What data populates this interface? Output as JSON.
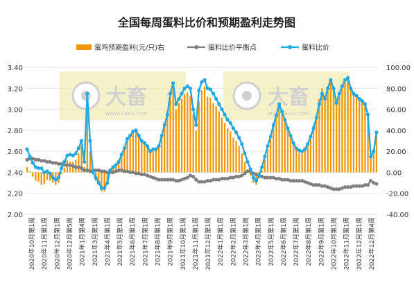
{
  "chart_data": {
    "type": "bar+line",
    "title": "全国每周蛋料比价和预期盈利走势图",
    "legend": [
      {
        "name": "蛋鸡预期盈利(元/只)右",
        "type": "bar",
        "color": "#f0960c"
      },
      {
        "name": "蛋料比价平衡点",
        "type": "line",
        "color": "#7f7f7f"
      },
      {
        "name": "蛋料比价",
        "type": "line",
        "color": "#22a7e0"
      }
    ],
    "legend_position": "top",
    "watermark_text": "大畜",
    "watermark_sub": "www.daxu.com",
    "y_left": {
      "min": 2.0,
      "max": 3.4,
      "ticks": [
        "2.00",
        "2.20",
        "2.40",
        "2.60",
        "2.80",
        "3.00",
        "3.20",
        "3.40"
      ]
    },
    "y_right": {
      "min": -40,
      "max": 100,
      "ticks": [
        "-40.00",
        "-20.00",
        "0.00",
        "20.00",
        "40.00",
        "60.00",
        "80.00",
        "100.00"
      ]
    },
    "grid": true,
    "x_tick_labels": [
      "2020年10月第1周",
      "2020年11月第1周",
      "2020年12月第1周",
      "2020年12月第5周",
      "2021年1月第4周",
      "2021年3月第1周",
      "2021年4月第1周",
      "2021年5月第1周",
      "2021年6月第1周",
      "2021年7月第1周",
      "2021年8月第1周",
      "2021年9月第1周",
      "2021年10月第1周",
      "2021年11月第1周",
      "2021年12月第1周",
      "2022年1月第1周",
      "2022年2月第1周",
      "2022年3月第1周",
      "2022年4月第1周",
      "2022年5月第1周",
      "2022年6月第1周",
      "2022年7月第1周",
      "2022年8月第1周",
      "2022年9月第1周",
      "2022年10月第1周",
      "2022年11月第1周",
      "2022年12月第1周",
      "2022年12月第4周"
    ],
    "ratio": [
      2.62,
      2.55,
      2.49,
      2.45,
      2.44,
      2.44,
      2.4,
      2.41,
      2.39,
      2.35,
      2.33,
      2.35,
      2.44,
      2.5,
      2.56,
      2.57,
      2.56,
      2.58,
      2.63,
      2.7,
      2.5,
      3.15,
      2.7,
      2.4,
      2.35,
      2.3,
      2.25,
      2.25,
      2.3,
      2.42,
      2.45,
      2.47,
      2.5,
      2.57,
      2.63,
      2.72,
      2.75,
      2.79,
      2.8,
      2.75,
      2.7,
      2.68,
      2.65,
      2.6,
      2.62,
      2.62,
      2.65,
      2.75,
      2.85,
      2.95,
      3.15,
      3.25,
      3.05,
      3.1,
      3.15,
      3.2,
      3.22,
      3.2,
      3.0,
      2.85,
      3.18,
      3.26,
      3.28,
      3.2,
      3.19,
      3.15,
      3.1,
      3.05,
      3.0,
      2.95,
      2.9,
      2.87,
      2.82,
      2.78,
      2.73,
      2.67,
      2.58,
      2.5,
      2.43,
      2.35,
      2.32,
      2.37,
      2.45,
      2.55,
      2.65,
      2.74,
      2.85,
      2.94,
      3.05,
      2.98,
      2.9,
      2.82,
      2.75,
      2.68,
      2.63,
      2.61,
      2.6,
      2.62,
      2.67,
      2.74,
      2.82,
      2.92,
      3.05,
      3.15,
      3.1,
      3.2,
      3.28,
      3.2,
      3.06,
      3.15,
      3.22,
      3.28,
      3.3,
      3.2,
      3.15,
      3.13,
      3.1,
      3.08,
      3.05,
      2.95,
      2.55,
      2.6,
      2.78
    ],
    "balance": [
      2.52,
      2.53,
      2.53,
      2.52,
      2.52,
      2.51,
      2.51,
      2.5,
      2.5,
      2.49,
      2.49,
      2.48,
      2.48,
      2.47,
      2.47,
      2.47,
      2.46,
      2.45,
      2.45,
      2.44,
      2.42,
      2.42,
      2.41,
      2.42,
      2.42,
      2.42,
      2.41,
      2.41,
      2.4,
      2.4,
      2.4,
      2.41,
      2.42,
      2.42,
      2.41,
      2.41,
      2.4,
      2.4,
      2.39,
      2.39,
      2.38,
      2.38,
      2.37,
      2.36,
      2.35,
      2.34,
      2.33,
      2.33,
      2.33,
      2.33,
      2.33,
      2.33,
      2.32,
      2.32,
      2.33,
      2.34,
      2.35,
      2.37,
      2.36,
      2.33,
      2.31,
      2.31,
      2.31,
      2.32,
      2.32,
      2.33,
      2.33,
      2.33,
      2.34,
      2.34,
      2.34,
      2.35,
      2.35,
      2.36,
      2.36,
      2.37,
      2.39,
      2.41,
      2.41,
      2.39,
      2.38,
      2.37,
      2.36,
      2.35,
      2.35,
      2.35,
      2.35,
      2.34,
      2.34,
      2.33,
      2.33,
      2.33,
      2.32,
      2.32,
      2.32,
      2.32,
      2.32,
      2.31,
      2.3,
      2.29,
      2.28,
      2.28,
      2.28,
      2.27,
      2.27,
      2.26,
      2.25,
      2.24,
      2.24,
      2.24,
      2.25,
      2.26,
      2.26,
      2.26,
      2.27,
      2.27,
      2.27,
      2.27,
      2.28,
      2.28,
      2.32,
      2.3,
      2.29
    ],
    "profit": [
      5,
      1,
      -4,
      -8,
      -9,
      -12,
      -11,
      -7,
      -8,
      -10,
      -12,
      -10,
      -2,
      4,
      12,
      10,
      10,
      12,
      18,
      25,
      5,
      58,
      20,
      -2,
      -8,
      -12,
      -18,
      -18,
      -10,
      3,
      4,
      6,
      10,
      17,
      23,
      33,
      35,
      38,
      40,
      35,
      30,
      28,
      26,
      20,
      20,
      22,
      26,
      36,
      48,
      58,
      72,
      80,
      60,
      66,
      70,
      74,
      76,
      73,
      55,
      40,
      68,
      78,
      82,
      72,
      71,
      66,
      63,
      58,
      52,
      47,
      42,
      39,
      33,
      30,
      25,
      18,
      10,
      3,
      -3,
      -10,
      -12,
      -6,
      2,
      12,
      22,
      32,
      45,
      55,
      65,
      57,
      50,
      42,
      34,
      27,
      22,
      19,
      18,
      21,
      27,
      36,
      45,
      55,
      70,
      80,
      73,
      82,
      88,
      81,
      67,
      74,
      80,
      88,
      90,
      81,
      74,
      72,
      70,
      67,
      65,
      55,
      15,
      20,
      38
    ]
  }
}
